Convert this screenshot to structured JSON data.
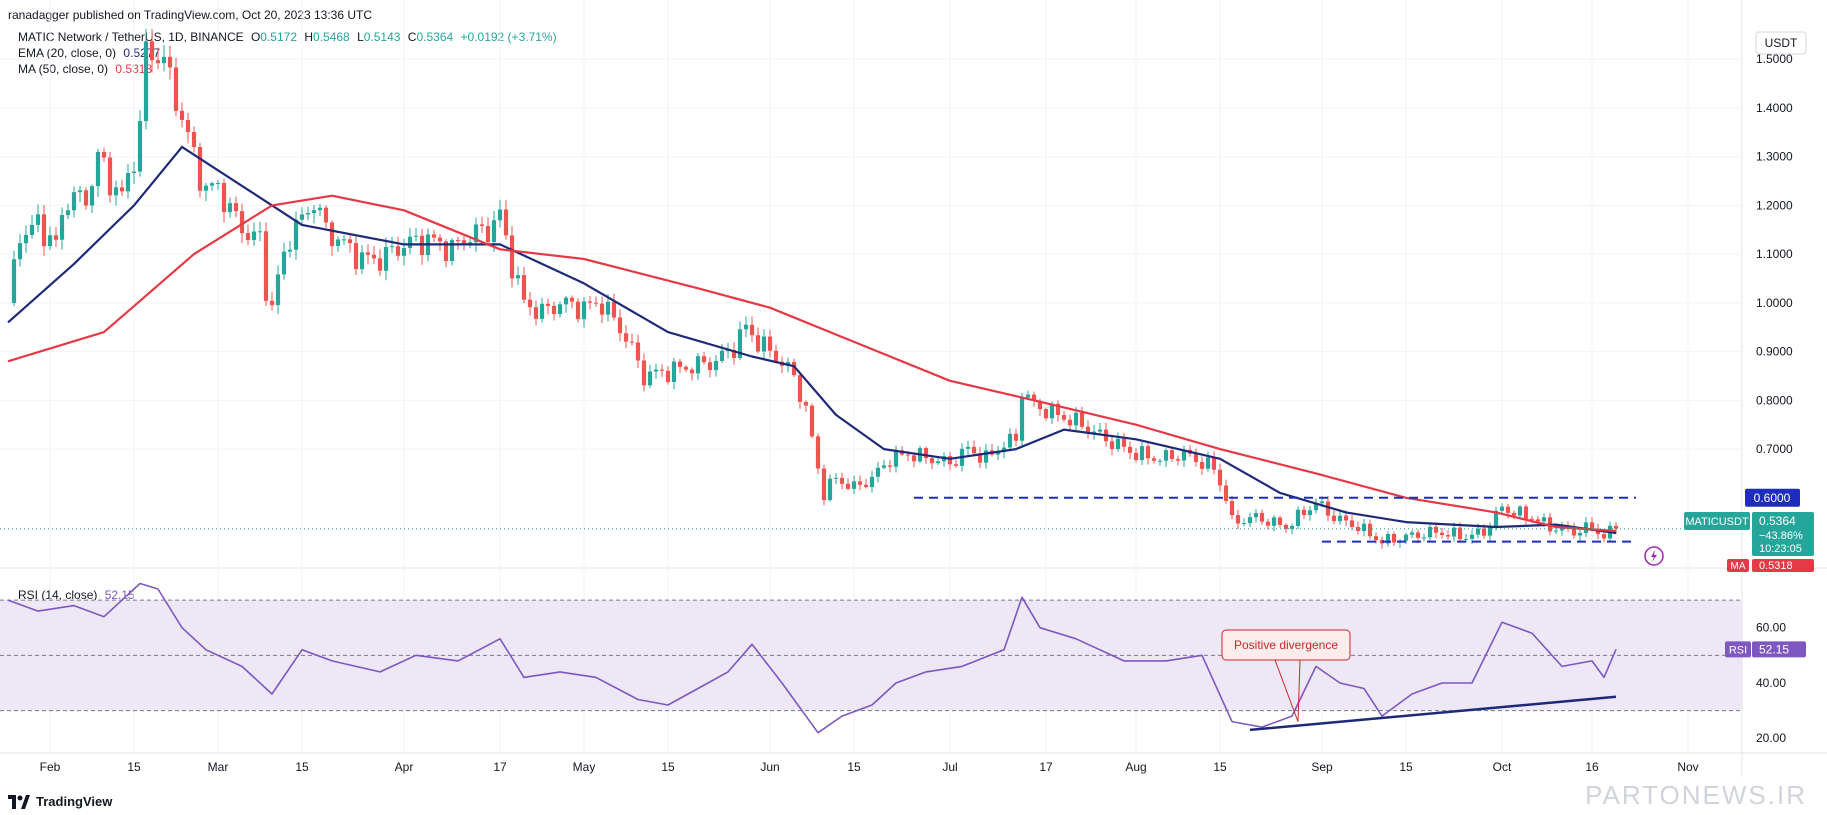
{
  "header": {
    "published": "ranadagger published on TradingView.com, Oct 20, 2023 13:36 UTC"
  },
  "legend": {
    "symbol": "MATIC Network / TetherUS, 1D, BINANCE",
    "o_label": "O",
    "o": "0.5172",
    "h_label": "H",
    "h": "0.5468",
    "l_label": "L",
    "l": "0.5143",
    "c_label": "C",
    "c": "0.5364",
    "change": "+0.0192 (+3.71%)",
    "ema_label": "EMA (20, close, 0)",
    "ema_value": "0.5277",
    "ma_label": "MA (50, close, 0)",
    "ma_value": "0.5318"
  },
  "rsi_legend": {
    "label": "RSI (14, close)",
    "value": "52.15"
  },
  "currency_button": "USDT",
  "price_badges": {
    "symbol": "MATICUSDT",
    "price": "0.5364",
    "pct": "−43.86%",
    "countdown": "10:23:05",
    "ma_tag": "MA",
    "ma_value": "0.5318",
    "level": "0.6000",
    "rsi_tag": "RSI",
    "rsi_value": "52.15"
  },
  "annotation": "Positive divergence",
  "footer": {
    "logo": "TradingView",
    "watermark": "PARTONEWS.IR"
  },
  "colors": {
    "up": "#26a69a",
    "down": "#ef5350",
    "ema": "#1e2a78",
    "ma": "#e53945",
    "rsi": "#7e57c2",
    "rsi_band": "#ede7f6",
    "level": "#1f2dbf",
    "grid": "#f0f3fa"
  },
  "chart_data": [
    {
      "type": "candlestick",
      "title": "MATIC Network / TetherUS, 1D, BINANCE",
      "ylim": [
        0.46,
        1.56
      ],
      "y_ticks": [
        0.7,
        0.8,
        0.9,
        1.0,
        1.1,
        1.2,
        1.3,
        1.4,
        1.5
      ],
      "y_tick_labels": [
        "0.7000",
        "0.8000",
        "0.9000",
        "1.0000",
        "1.1000",
        "1.2000",
        "1.3000",
        "1.4000",
        "1.5000"
      ],
      "x_labels": [
        {
          "label": "Feb",
          "date": "2023-02-01"
        },
        {
          "label": "15",
          "date": "2023-02-15"
        },
        {
          "label": "Mar",
          "date": "2023-03-01"
        },
        {
          "label": "15",
          "date": "2023-03-15"
        },
        {
          "label": "Apr",
          "date": "2023-04-01"
        },
        {
          "label": "17",
          "date": "2023-04-17"
        },
        {
          "label": "May",
          "date": "2023-05-01"
        },
        {
          "label": "15",
          "date": "2023-05-15"
        },
        {
          "label": "Jun",
          "date": "2023-06-01"
        },
        {
          "label": "15",
          "date": "2023-06-15"
        },
        {
          "label": "Jul",
          "date": "2023-07-01"
        },
        {
          "label": "17",
          "date": "2023-07-17"
        },
        {
          "label": "Aug",
          "date": "2023-08-01"
        },
        {
          "label": "15",
          "date": "2023-08-15"
        },
        {
          "label": "Sep",
          "date": "2023-09-01"
        },
        {
          "label": "15",
          "date": "2023-09-15"
        },
        {
          "label": "Oct",
          "date": "2023-10-01"
        },
        {
          "label": "16",
          "date": "2023-10-16"
        },
        {
          "label": "Nov",
          "date": "2023-11-01"
        }
      ],
      "x_range": [
        "2023-01-25",
        "2023-11-10"
      ],
      "price_path": [
        [
          "2023-01-25",
          1.0
        ],
        [
          "2023-01-27",
          1.14
        ],
        [
          "2023-01-30",
          1.16
        ],
        [
          "2023-02-02",
          1.12
        ],
        [
          "2023-02-04",
          1.22
        ],
        [
          "2023-02-07",
          1.21
        ],
        [
          "2023-02-09",
          1.3
        ],
        [
          "2023-02-11",
          1.25
        ],
        [
          "2023-02-13",
          1.22
        ],
        [
          "2023-02-14",
          1.25
        ],
        [
          "2023-02-16",
          1.36
        ],
        [
          "2023-02-17",
          1.52
        ],
        [
          "2023-02-18",
          1.5
        ],
        [
          "2023-02-19",
          1.52
        ],
        [
          "2023-02-21",
          1.46
        ],
        [
          "2023-02-23",
          1.38
        ],
        [
          "2023-02-25",
          1.3
        ],
        [
          "2023-02-27",
          1.23
        ],
        [
          "2023-03-01",
          1.24
        ],
        [
          "2023-03-03",
          1.19
        ],
        [
          "2023-03-06",
          1.14
        ],
        [
          "2023-03-08",
          1.13
        ],
        [
          "2023-03-09",
          1.03
        ],
        [
          "2023-03-10",
          0.99
        ],
        [
          "2023-03-11",
          1.05
        ],
        [
          "2023-03-13",
          1.14
        ],
        [
          "2023-03-15",
          1.17
        ],
        [
          "2023-03-17",
          1.21
        ],
        [
          "2023-03-19",
          1.15
        ],
        [
          "2023-03-22",
          1.12
        ],
        [
          "2023-03-25",
          1.09
        ],
        [
          "2023-03-28",
          1.09
        ],
        [
          "2023-04-01",
          1.12
        ],
        [
          "2023-04-05",
          1.13
        ],
        [
          "2023-04-09",
          1.11
        ],
        [
          "2023-04-12",
          1.14
        ],
        [
          "2023-04-15",
          1.15
        ],
        [
          "2023-04-17",
          1.18
        ],
        [
          "2023-04-19",
          1.08
        ],
        [
          "2023-04-21",
          1.0
        ],
        [
          "2023-04-24",
          0.98
        ],
        [
          "2023-04-27",
          1.0
        ],
        [
          "2023-05-01",
          0.99
        ],
        [
          "2023-05-04",
          1.0
        ],
        [
          "2023-05-08",
          0.93
        ],
        [
          "2023-05-11",
          0.85
        ],
        [
          "2023-05-15",
          0.86
        ],
        [
          "2023-05-19",
          0.87
        ],
        [
          "2023-05-23",
          0.88
        ],
        [
          "2023-05-26",
          0.91
        ],
        [
          "2023-05-28",
          0.95
        ],
        [
          "2023-05-30",
          0.92
        ],
        [
          "2023-06-02",
          0.89
        ],
        [
          "2023-06-05",
          0.85
        ],
        [
          "2023-06-07",
          0.78
        ],
        [
          "2023-06-09",
          0.66
        ],
        [
          "2023-06-10",
          0.61
        ],
        [
          "2023-06-12",
          0.64
        ],
        [
          "2023-06-15",
          0.62
        ],
        [
          "2023-06-18",
          0.64
        ],
        [
          "2023-06-21",
          0.68
        ],
        [
          "2023-06-24",
          0.69
        ],
        [
          "2023-06-28",
          0.68
        ],
        [
          "2023-07-01",
          0.67
        ],
        [
          "2023-07-04",
          0.7
        ],
        [
          "2023-07-07",
          0.68
        ],
        [
          "2023-07-10",
          0.71
        ],
        [
          "2023-07-12",
          0.72
        ],
        [
          "2023-07-13",
          0.82
        ],
        [
          "2023-07-15",
          0.79
        ],
        [
          "2023-07-19",
          0.77
        ],
        [
          "2023-07-23",
          0.75
        ],
        [
          "2023-07-27",
          0.72
        ],
        [
          "2023-08-01",
          0.69
        ],
        [
          "2023-08-05",
          0.68
        ],
        [
          "2023-08-09",
          0.69
        ],
        [
          "2023-08-14",
          0.66
        ],
        [
          "2023-08-16",
          0.6
        ],
        [
          "2023-08-17",
          0.55
        ],
        [
          "2023-08-21",
          0.56
        ],
        [
          "2023-08-26",
          0.54
        ],
        [
          "2023-08-29",
          0.57
        ],
        [
          "2023-08-31",
          0.59
        ],
        [
          "2023-09-03",
          0.56
        ],
        [
          "2023-09-07",
          0.54
        ],
        [
          "2023-09-11",
          0.51
        ],
        [
          "2023-09-15",
          0.52
        ],
        [
          "2023-09-20",
          0.53
        ],
        [
          "2023-09-25",
          0.52
        ],
        [
          "2023-09-28",
          0.53
        ],
        [
          "2023-10-01",
          0.58
        ],
        [
          "2023-10-03",
          0.57
        ],
        [
          "2023-10-06",
          0.56
        ],
        [
          "2023-10-09",
          0.54
        ],
        [
          "2023-10-13",
          0.53
        ],
        [
          "2023-10-16",
          0.54
        ],
        [
          "2023-10-18",
          0.52
        ],
        [
          "2023-10-20",
          0.5364
        ]
      ],
      "series": [
        {
          "name": "EMA (20, close, 0)",
          "points": [
            [
              "2023-01-25",
              0.96
            ],
            [
              "2023-02-05",
              1.08
            ],
            [
              "2023-02-15",
              1.2
            ],
            [
              "2023-02-23",
              1.32
            ],
            [
              "2023-03-05",
              1.24
            ],
            [
              "2023-03-15",
              1.16
            ],
            [
              "2023-04-01",
              1.12
            ],
            [
              "2023-04-17",
              1.12
            ],
            [
              "2023-05-01",
              1.04
            ],
            [
              "2023-05-15",
              0.94
            ],
            [
              "2023-05-29",
              0.89
            ],
            [
              "2023-06-05",
              0.87
            ],
            [
              "2023-06-12",
              0.77
            ],
            [
              "2023-06-20",
              0.7
            ],
            [
              "2023-07-01",
              0.68
            ],
            [
              "2023-07-12",
              0.7
            ],
            [
              "2023-07-20",
              0.74
            ],
            [
              "2023-08-01",
              0.72
            ],
            [
              "2023-08-15",
              0.68
            ],
            [
              "2023-08-25",
              0.61
            ],
            [
              "2023-09-05",
              0.57
            ],
            [
              "2023-09-15",
              0.55
            ],
            [
              "2023-09-30",
              0.54
            ],
            [
              "2023-10-10",
              0.545
            ],
            [
              "2023-10-20",
              0.5277
            ]
          ]
        },
        {
          "name": "MA (50, close, 0)",
          "points": [
            [
              "2023-01-25",
              0.88
            ],
            [
              "2023-02-10",
              0.94
            ],
            [
              "2023-02-25",
              1.1
            ],
            [
              "2023-03-10",
              1.2
            ],
            [
              "2023-03-20",
              1.22
            ],
            [
              "2023-04-01",
              1.19
            ],
            [
              "2023-04-17",
              1.11
            ],
            [
              "2023-05-01",
              1.09
            ],
            [
              "2023-05-20",
              1.03
            ],
            [
              "2023-06-01",
              0.99
            ],
            [
              "2023-06-15",
              0.92
            ],
            [
              "2023-07-01",
              0.84
            ],
            [
              "2023-07-15",
              0.8
            ],
            [
              "2023-08-01",
              0.75
            ],
            [
              "2023-08-15",
              0.7
            ],
            [
              "2023-08-31",
              0.65
            ],
            [
              "2023-09-15",
              0.6
            ],
            [
              "2023-09-30",
              0.57
            ],
            [
              "2023-10-10",
              0.54
            ],
            [
              "2023-10-20",
              0.5318
            ]
          ]
        }
      ],
      "levels": [
        {
          "value": 0.6,
          "from": "2023-06-25",
          "to": "2023-10-20"
        },
        {
          "value": 0.51,
          "from": "2023-09-01",
          "to": "2023-10-20"
        }
      ],
      "last_price": 0.5364
    },
    {
      "type": "line",
      "title": "RSI (14, close)",
      "ylim": [
        15,
        78
      ],
      "y_ticks": [
        20,
        40,
        60
      ],
      "y_tick_labels": [
        "20.00",
        "40.00",
        "60.00"
      ],
      "band": [
        30,
        70
      ],
      "midline": 50,
      "values": [
        [
          "2023-01-25",
          70
        ],
        [
          "2023-01-30",
          66
        ],
        [
          "2023-02-05",
          68
        ],
        [
          "2023-02-10",
          64
        ],
        [
          "2023-02-16",
          76
        ],
        [
          "2023-02-19",
          74
        ],
        [
          "2023-02-23",
          60
        ],
        [
          "2023-02-27",
          52
        ],
        [
          "2023-03-05",
          46
        ],
        [
          "2023-03-10",
          36
        ],
        [
          "2023-03-15",
          52
        ],
        [
          "2023-03-20",
          48
        ],
        [
          "2023-03-28",
          44
        ],
        [
          "2023-04-03",
          50
        ],
        [
          "2023-04-10",
          48
        ],
        [
          "2023-04-17",
          56
        ],
        [
          "2023-04-21",
          42
        ],
        [
          "2023-04-27",
          44
        ],
        [
          "2023-05-03",
          42
        ],
        [
          "2023-05-10",
          34
        ],
        [
          "2023-05-15",
          32
        ],
        [
          "2023-05-20",
          38
        ],
        [
          "2023-05-25",
          44
        ],
        [
          "2023-05-29",
          54
        ],
        [
          "2023-06-03",
          40
        ],
        [
          "2023-06-09",
          22
        ],
        [
          "2023-06-13",
          28
        ],
        [
          "2023-06-18",
          32
        ],
        [
          "2023-06-22",
          40
        ],
        [
          "2023-06-27",
          44
        ],
        [
          "2023-07-03",
          46
        ],
        [
          "2023-07-10",
          52
        ],
        [
          "2023-07-13",
          71
        ],
        [
          "2023-07-16",
          60
        ],
        [
          "2023-07-22",
          56
        ],
        [
          "2023-07-30",
          48
        ],
        [
          "2023-08-06",
          48
        ],
        [
          "2023-08-12",
          50
        ],
        [
          "2023-08-17",
          26
        ],
        [
          "2023-08-22",
          24
        ],
        [
          "2023-08-27",
          28
        ],
        [
          "2023-08-31",
          46
        ],
        [
          "2023-09-04",
          40
        ],
        [
          "2023-09-08",
          38
        ],
        [
          "2023-09-11",
          28
        ],
        [
          "2023-09-16",
          36
        ],
        [
          "2023-09-21",
          40
        ],
        [
          "2023-09-26",
          40
        ],
        [
          "2023-10-01",
          62
        ],
        [
          "2023-10-06",
          58
        ],
        [
          "2023-10-11",
          46
        ],
        [
          "2023-10-16",
          48
        ],
        [
          "2023-10-18",
          42
        ],
        [
          "2023-10-20",
          52.15
        ]
      ],
      "divergence_line": [
        [
          "2023-08-20",
          23
        ],
        [
          "2023-10-20",
          35
        ]
      ],
      "annotation": {
        "text": "Positive divergence",
        "date": "2023-08-28",
        "value": 26
      }
    }
  ]
}
